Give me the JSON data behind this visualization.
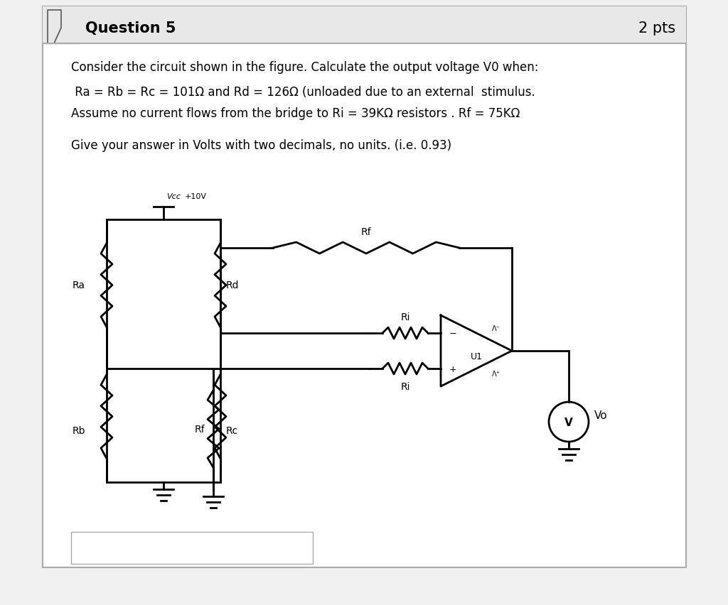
{
  "title": "Question 5",
  "pts": "2 pts",
  "bg_color": "#f0f0f0",
  "card_color": "#ffffff",
  "header_bg": "#e8e8e8",
  "border_color": "#aaaaaa",
  "text_line1": "Consider the circuit shown in the figure. Calculate the output voltage V0 when:",
  "text_line2": " Ra = Rb = Rc = 101Ω and Rd = 126Ω (unloaded due to an external  stimulus.",
  "text_line3": "Assume no current flows from the bridge to Ri = 39KΩ resistors . Rf = 75KΩ",
  "text_line4": "Give your answer in Volts with two decimals, no units. (i.e. 0.93)",
  "font_size_title": 15,
  "font_size_body": 12,
  "font_size_circuit": 10
}
